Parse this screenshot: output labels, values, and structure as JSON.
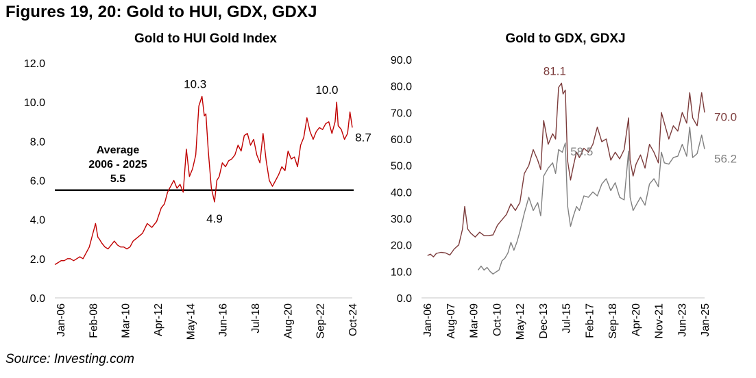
{
  "figure_title": "Figures 19, 20: Gold to HUI, GDX, GDXJ",
  "source": "Source: Investing.com",
  "colors": {
    "hui": "#c00000",
    "gdx": "#7b3b3b",
    "gdxj": "#808080",
    "avg_line": "#000000",
    "axis": "#d9d9d9"
  },
  "chart_data": [
    {
      "type": "line",
      "title": "Gold to HUI Gold Index",
      "xlabel": "",
      "ylabel": "",
      "ylim": [
        0,
        12
      ],
      "yticks": [
        "0.0",
        "2.0",
        "4.0",
        "6.0",
        "8.0",
        "10.0",
        "12.0"
      ],
      "xticks": [
        "Jan-06",
        "Feb-08",
        "Mar-10",
        "Apr-12",
        "May-14",
        "Jun-16",
        "Jul-18",
        "Aug-20",
        "Sep-22",
        "Oct-24"
      ],
      "xrange": [
        2006.0,
        2025.0
      ],
      "grid": false,
      "series": [
        {
          "name": "Gold to HUI",
          "x": [
            2006.0,
            2006.2,
            2006.4,
            2006.6,
            2006.8,
            2007.0,
            2007.2,
            2007.4,
            2007.6,
            2007.8,
            2008.0,
            2008.2,
            2008.4,
            2008.6,
            2008.75,
            2008.85,
            2009.0,
            2009.2,
            2009.4,
            2009.6,
            2009.8,
            2010.0,
            2010.2,
            2010.4,
            2010.6,
            2010.8,
            2011.0,
            2011.3,
            2011.6,
            2011.9,
            2012.2,
            2012.5,
            2012.8,
            2013.0,
            2013.2,
            2013.4,
            2013.6,
            2013.8,
            2014.0,
            2014.2,
            2014.4,
            2014.6,
            2014.8,
            2015.0,
            2015.2,
            2015.4,
            2015.55,
            2015.65,
            2015.8,
            2016.0,
            2016.2,
            2016.35,
            2016.5,
            2016.7,
            2016.9,
            2017.1,
            2017.3,
            2017.5,
            2017.7,
            2017.9,
            2018.1,
            2018.3,
            2018.5,
            2018.7,
            2018.9,
            2019.1,
            2019.3,
            2019.5,
            2019.7,
            2019.9,
            2020.1,
            2020.3,
            2020.5,
            2020.7,
            2020.9,
            2021.1,
            2021.3,
            2021.5,
            2021.7,
            2021.9,
            2022.1,
            2022.3,
            2022.5,
            2022.7,
            2022.9,
            2023.1,
            2023.3,
            2023.5,
            2023.7,
            2023.9,
            2024.0,
            2024.1,
            2024.3,
            2024.5,
            2024.7,
            2024.85,
            2025.0
          ],
          "values": [
            1.7,
            1.8,
            1.9,
            1.9,
            2.0,
            2.0,
            1.9,
            2.0,
            2.1,
            2.0,
            2.3,
            2.6,
            3.2,
            3.8,
            3.1,
            3.0,
            2.8,
            2.6,
            2.5,
            2.7,
            2.9,
            2.7,
            2.6,
            2.6,
            2.5,
            2.6,
            2.9,
            3.1,
            3.3,
            3.8,
            3.6,
            3.9,
            4.6,
            4.8,
            5.4,
            5.7,
            6.0,
            5.6,
            5.8,
            5.4,
            7.6,
            6.2,
            6.6,
            7.3,
            9.8,
            10.3,
            9.3,
            9.4,
            7.5,
            5.6,
            4.9,
            6.0,
            6.2,
            6.9,
            6.7,
            7.0,
            7.1,
            7.3,
            7.8,
            7.5,
            8.3,
            8.4,
            7.8,
            8.1,
            7.3,
            6.9,
            8.4,
            7.0,
            6.0,
            5.7,
            6.0,
            6.3,
            6.7,
            6.5,
            7.5,
            7.1,
            7.2,
            6.7,
            7.8,
            8.2,
            9.2,
            8.5,
            8.1,
            8.5,
            8.7,
            8.6,
            8.9,
            9.0,
            8.4,
            9.0,
            10.0,
            8.8,
            8.6,
            8.1,
            8.4,
            9.5,
            8.7
          ]
        }
      ],
      "average_line": {
        "value": 5.5,
        "label_lines": [
          "Average",
          "2006 - 2025",
          "5.5"
        ]
      },
      "annotations": [
        {
          "text": "10.3",
          "x": 2015.4,
          "y": 10.3
        },
        {
          "text": "4.9",
          "x": 2016.2,
          "y": 4.9
        },
        {
          "text": "10.0",
          "x": 2023.9,
          "y": 10.0
        },
        {
          "text": "8.7",
          "x": 2025.0,
          "y": 8.7
        }
      ]
    },
    {
      "type": "line",
      "title": "Gold to GDX, GDXJ",
      "xlabel": "",
      "ylabel": "",
      "ylim": [
        0,
        90
      ],
      "yticks": [
        "0.0",
        "10.0",
        "20.0",
        "30.0",
        "40.0",
        "50.0",
        "60.0",
        "70.0",
        "80.0",
        "90.0"
      ],
      "xticks": [
        "Jan-06",
        "Aug-07",
        "Mar-09",
        "Oct-10",
        "May-12",
        "Dec-13",
        "Jul-15",
        "Feb-17",
        "Sep-18",
        "Apr-20",
        "Nov-21",
        "Jun-23",
        "Jan-25"
      ],
      "xrange": [
        2006.0,
        2025.0
      ],
      "grid": false,
      "series": [
        {
          "name": "Gold to GDX",
          "x": [
            2006.4,
            2006.6,
            2006.8,
            2007.0,
            2007.3,
            2007.6,
            2007.9,
            2008.2,
            2008.5,
            2008.75,
            2008.9,
            2009.1,
            2009.3,
            2009.6,
            2009.9,
            2010.2,
            2010.5,
            2010.8,
            2011.1,
            2011.4,
            2011.7,
            2012.0,
            2012.3,
            2012.6,
            2012.9,
            2013.2,
            2013.5,
            2013.8,
            2014.0,
            2014.2,
            2014.5,
            2014.8,
            2015.0,
            2015.2,
            2015.4,
            2015.5,
            2015.65,
            2015.8,
            2016.0,
            2016.2,
            2016.4,
            2016.6,
            2016.9,
            2017.2,
            2017.5,
            2017.8,
            2018.1,
            2018.4,
            2018.7,
            2019.0,
            2019.3,
            2019.6,
            2019.9,
            2020.0,
            2020.2,
            2020.4,
            2020.7,
            2021.0,
            2021.3,
            2021.6,
            2021.9,
            2022.1,
            2022.3,
            2022.6,
            2022.9,
            2023.2,
            2023.5,
            2023.8,
            2024.0,
            2024.2,
            2024.5,
            2024.8,
            2025.0
          ],
          "values": [
            16.0,
            16.5,
            15.5,
            16.8,
            17.2,
            17.0,
            16.2,
            18.5,
            20.0,
            26.0,
            34.5,
            26.0,
            24.5,
            23.0,
            24.8,
            23.5,
            23.5,
            23.8,
            27.5,
            29.5,
            31.5,
            35.5,
            33.0,
            36.0,
            47.0,
            50.0,
            56.0,
            52.0,
            48.5,
            67.0,
            58.0,
            62.0,
            60.0,
            79.5,
            81.1,
            77.0,
            78.5,
            52.0,
            44.5,
            50.0,
            55.0,
            53.0,
            56.5,
            55.0,
            58.0,
            64.5,
            59.0,
            60.0,
            52.0,
            55.0,
            52.5,
            56.0,
            68.0,
            52.0,
            46.0,
            50.5,
            54.0,
            49.0,
            58.0,
            55.0,
            51.0,
            70.0,
            66.0,
            60.0,
            65.0,
            63.0,
            70.0,
            66.0,
            77.5,
            68.0,
            65.0,
            77.5,
            70.0
          ]
        },
        {
          "name": "Gold to GDXJ",
          "x": [
            2009.8,
            2010.0,
            2010.2,
            2010.4,
            2010.6,
            2010.8,
            2011.0,
            2011.2,
            2011.4,
            2011.6,
            2011.8,
            2012.0,
            2012.2,
            2012.4,
            2012.6,
            2012.9,
            2013.2,
            2013.5,
            2013.8,
            2014.0,
            2014.2,
            2014.5,
            2014.8,
            2015.0,
            2015.2,
            2015.45,
            2015.65,
            2015.8,
            2016.0,
            2016.2,
            2016.4,
            2016.6,
            2016.9,
            2017.2,
            2017.5,
            2017.8,
            2018.1,
            2018.4,
            2018.7,
            2019.0,
            2019.3,
            2019.6,
            2019.9,
            2020.0,
            2020.2,
            2020.4,
            2020.7,
            2021.0,
            2021.3,
            2021.6,
            2021.9,
            2022.1,
            2022.3,
            2022.6,
            2022.9,
            2023.2,
            2023.5,
            2023.8,
            2024.0,
            2024.2,
            2024.5,
            2024.8,
            2025.0
          ],
          "values": [
            10.5,
            12.0,
            10.5,
            11.5,
            10.0,
            9.0,
            9.8,
            10.5,
            14.0,
            15.0,
            17.0,
            21.0,
            18.0,
            21.0,
            25.0,
            32.0,
            38.0,
            33.0,
            36.0,
            31.0,
            46.0,
            49.0,
            51.0,
            47.0,
            56.0,
            55.0,
            58.5,
            35.0,
            27.0,
            31.0,
            34.5,
            33.0,
            38.5,
            38.0,
            40.0,
            38.5,
            43.0,
            45.0,
            40.5,
            43.5,
            38.0,
            37.0,
            55.5,
            38.0,
            33.0,
            35.0,
            38.0,
            35.0,
            43.0,
            45.0,
            42.0,
            55.0,
            51.0,
            50.5,
            53.0,
            53.5,
            58.0,
            53.5,
            64.5,
            53.0,
            54.5,
            61.5,
            56.2
          ]
        }
      ],
      "annotations": [
        {
          "text": "81.1",
          "series": "Gold to GDX",
          "x": 2015.4,
          "y": 81.1
        },
        {
          "text": "58.5",
          "series": "Gold to GDXJ",
          "x": 2015.65,
          "y": 58.5
        },
        {
          "text": "70.0",
          "series": "Gold to GDX",
          "x": 2025.0,
          "y": 70.0
        },
        {
          "text": "56.2",
          "series": "Gold to GDXJ",
          "x": 2025.0,
          "y": 56.2
        }
      ]
    }
  ]
}
